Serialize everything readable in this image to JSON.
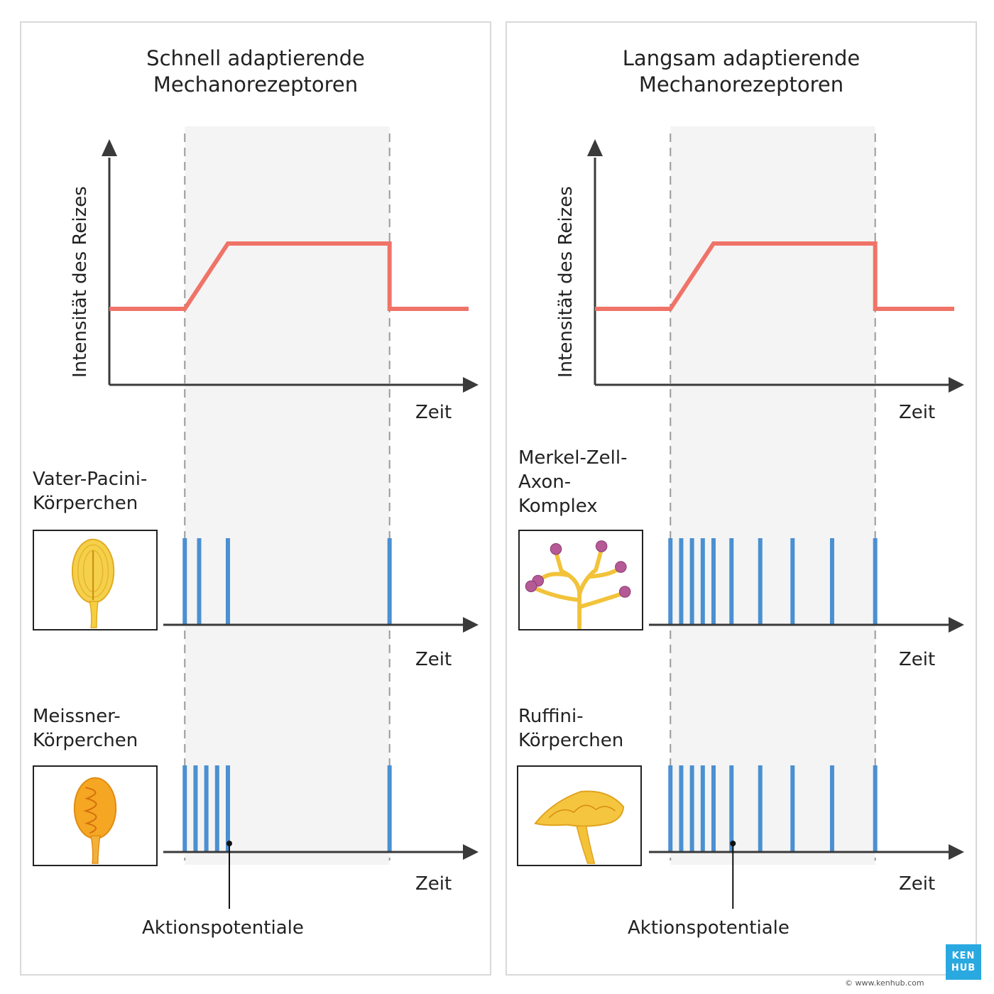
{
  "colors": {
    "stimulus": "#f07368",
    "spike": "#4a90d2",
    "axis": "#3a3a3a",
    "shade": "#f4f4f4",
    "dash": "#9a9a9a",
    "brand": "#2aa9e0"
  },
  "left": {
    "title": "Schnell adaptierende\nMechanorezeptoren",
    "ylabel": "Intensität des Reizes",
    "xlabel": "Zeit",
    "receptors": [
      {
        "name": "Vater-Pacini-\nKörperchen",
        "xlabel": "Zeit",
        "icon": "pacinian-corpuscle-icon"
      },
      {
        "name": "Meissner-\nKörperchen",
        "xlabel": "Zeit",
        "icon": "meissner-corpuscle-icon"
      }
    ],
    "annotation": "Aktionspotentiale"
  },
  "right": {
    "title": "Langsam adaptierende\nMechanorezeptoren",
    "ylabel": "Intensität des Reizes",
    "xlabel": "Zeit",
    "receptors": [
      {
        "name": "Merkel-Zell-\nAxon-\nKomplex",
        "xlabel": "Zeit",
        "icon": "merkel-complex-icon"
      },
      {
        "name": "Ruffini-\nKörperchen",
        "xlabel": "Zeit",
        "icon": "ruffini-corpuscle-icon"
      }
    ],
    "annotation": "Aktionspotentiale"
  },
  "chart_data": [
    {
      "type": "line",
      "panel": "left",
      "series": [
        {
          "x": [
            0,
            21,
            33,
            78,
            78,
            100
          ],
          "y": [
            0,
            0,
            1,
            1,
            0,
            0
          ]
        }
      ],
      "stimulus_window": [
        21,
        78
      ],
      "ylabel": "Intensität des Reizes",
      "xlabel": "Zeit"
    },
    {
      "type": "spike-train",
      "panel": "left",
      "rows": [
        {
          "receptor": "Vater-Pacini-Körperchen",
          "spikes": [
            21,
            25,
            33,
            78
          ]
        },
        {
          "receptor": "Meissner-Körperchen",
          "spikes": [
            21,
            24,
            27,
            30,
            33,
            78
          ]
        }
      ],
      "xlabel": "Zeit"
    },
    {
      "type": "line",
      "panel": "right",
      "series": [
        {
          "x": [
            0,
            21,
            33,
            78,
            78,
            100
          ],
          "y": [
            0,
            0,
            1,
            1,
            0,
            0
          ]
        }
      ],
      "stimulus_window": [
        21,
        78
      ],
      "ylabel": "Intensität des Reizes",
      "xlabel": "Zeit"
    },
    {
      "type": "spike-train",
      "panel": "right",
      "rows": [
        {
          "receptor": "Merkel-Zell-Axon-Komplex",
          "spikes": [
            21,
            24,
            27,
            30,
            33,
            38,
            46,
            55,
            66,
            78
          ]
        },
        {
          "receptor": "Ruffini-Körperchen",
          "spikes": [
            21,
            24,
            27,
            30,
            33,
            38,
            46,
            55,
            66,
            78
          ]
        }
      ],
      "xlabel": "Zeit"
    }
  ],
  "brand": {
    "logo_top": "KEN",
    "logo_bottom": "HUB",
    "copyright": "© www.kenhub.com"
  }
}
